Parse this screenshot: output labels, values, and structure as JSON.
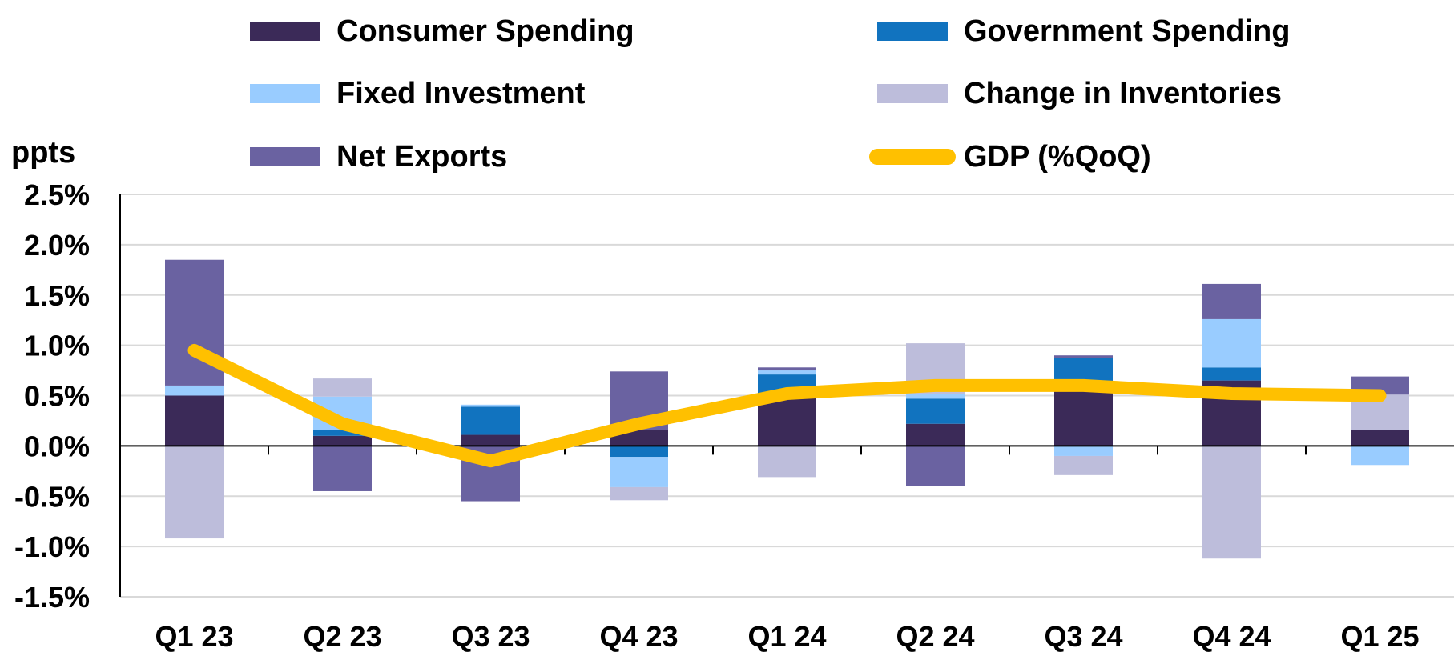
{
  "chart_data": {
    "type": "bar",
    "stacked": true,
    "title": "",
    "ylabel": "ppts",
    "xlabel": "",
    "ylim": [
      -1.5,
      2.5
    ],
    "ytick_values": [
      2.5,
      2.0,
      1.5,
      1.0,
      0.5,
      0.0,
      -0.5,
      -1.0,
      -1.5
    ],
    "ytick_labels": [
      "2.5%",
      "2.0%",
      "1.5%",
      "1.0%",
      "0.5%",
      "0.0%",
      "-0.5%",
      "-1.0%",
      "-1.5%"
    ],
    "categories": [
      "Q1 23",
      "Q2 23",
      "Q3 23",
      "Q4 23",
      "Q1 24",
      "Q2 24",
      "Q3 24",
      "Q4 24",
      "Q1 25"
    ],
    "grid": true,
    "legend_position": "top",
    "series": [
      {
        "name": "Consumer Spending",
        "color": "#3B2A58",
        "values": [
          0.5,
          0.1,
          0.11,
          0.16,
          0.5,
          0.22,
          0.55,
          0.65,
          0.16
        ]
      },
      {
        "name": "Government Spending",
        "color": "#1173BF",
        "values": [
          0.0,
          0.06,
          0.28,
          -0.11,
          0.21,
          0.25,
          0.32,
          0.13,
          0.0
        ]
      },
      {
        "name": "Fixed Investment",
        "color": "#99CCFF",
        "values": [
          0.1,
          0.33,
          0.02,
          -0.3,
          0.04,
          0.05,
          -0.1,
          0.48,
          -0.19
        ]
      },
      {
        "name": "Change in Inventories",
        "color": "#BDBDDB",
        "values": [
          -0.92,
          0.18,
          0.0,
          -0.13,
          -0.31,
          0.5,
          -0.19,
          -1.12,
          0.35
        ]
      },
      {
        "name": "Net Exports",
        "color": "#6A62A1",
        "values": [
          1.25,
          -0.45,
          -0.55,
          0.58,
          0.03,
          -0.4,
          0.03,
          0.35,
          0.18
        ]
      }
    ],
    "line": {
      "name": "GDP (%QoQ)",
      "color": "#FFC000",
      "values": [
        0.95,
        0.22,
        -0.15,
        0.22,
        0.52,
        0.6,
        0.6,
        0.52,
        0.5
      ]
    }
  }
}
